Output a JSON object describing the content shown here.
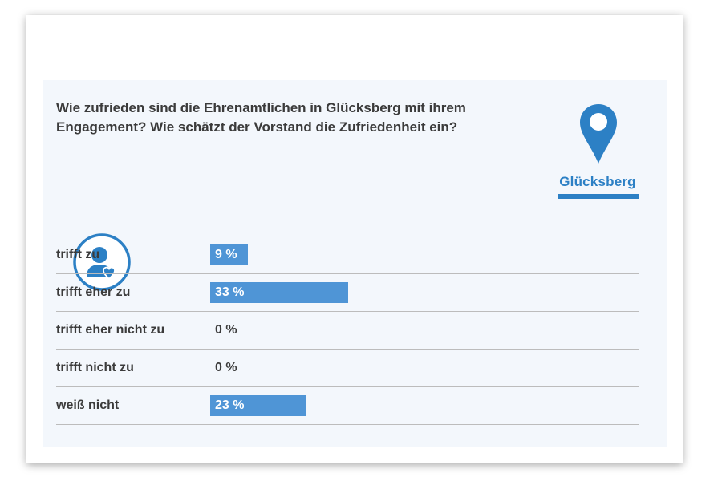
{
  "header": {
    "question": "Wie zufrieden sind die Ehrenamtlichen in Glücksberg mit ihrem Engagement? Wie schätzt der Vorstand die Zufriedenheit ein?"
  },
  "brand": {
    "name": "Glücksberg",
    "color": "#2c80c5",
    "icon": "location-pin-icon"
  },
  "badge": {
    "icon": "user-heart-icon",
    "color": "#2c80c5"
  },
  "chart_data": {
    "type": "bar",
    "orientation": "horizontal",
    "categories": [
      "trifft zu",
      "trifft eher zu",
      "trifft eher nicht zu",
      "trifft nicht zu",
      "weiß nicht"
    ],
    "values": [
      9,
      33,
      0,
      0,
      23
    ],
    "value_labels": [
      "9 %",
      "33 %",
      "0 %",
      "0 %",
      "23 %"
    ],
    "unit": "%",
    "xlim": [
      0,
      100
    ],
    "bar_color": "#4f95d6",
    "grid": false
  }
}
